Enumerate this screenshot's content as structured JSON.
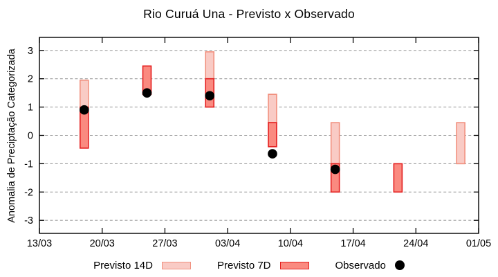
{
  "chart_data": {
    "type": "range-bar+scatter",
    "title": "Rio Curuá Una - Previsto x Observado",
    "ylabel": "Anomalia de Preciptação Categorizada",
    "ylim": [
      -3.46,
      3.46
    ],
    "yticks": [
      -3,
      -2,
      -1,
      0,
      1,
      2,
      3
    ],
    "xticks": [
      "13/03",
      "20/03",
      "27/03",
      "03/04",
      "10/04",
      "17/04",
      "24/04",
      "01/05"
    ],
    "xtick_step_days": 7,
    "x_span_days": 49,
    "grid": {
      "horizontal": true,
      "style": "dashed",
      "color": "#9e9e9e"
    },
    "axis_color": "#000000",
    "legend_position": "bottom-center",
    "series": [
      {
        "name": "Previsto 14D",
        "type": "range-bar",
        "fill": "#f9cbc5",
        "border": "#f1907e",
        "points": [
          {
            "date": "18/03",
            "day": 5,
            "low": 1.0,
            "high": 1.95
          },
          {
            "date": "01/04",
            "day": 19,
            "low": 2.0,
            "high": 2.95
          },
          {
            "date": "08/04",
            "day": 26,
            "low": 0.45,
            "high": 1.45
          },
          {
            "date": "15/04",
            "day": 33,
            "low": -1.0,
            "high": 0.45
          },
          {
            "date": "29/04",
            "day": 47,
            "low": -1.0,
            "high": 0.45
          }
        ]
      },
      {
        "name": "Previsto 7D",
        "type": "range-bar",
        "fill": "#fa8a80",
        "border": "#e41e1e",
        "points": [
          {
            "date": "18/03",
            "day": 5,
            "low": -0.45,
            "high": 1.0
          },
          {
            "date": "25/03",
            "day": 12,
            "low": 1.45,
            "high": 2.45
          },
          {
            "date": "01/04",
            "day": 19,
            "low": 1.0,
            "high": 2.0
          },
          {
            "date": "08/04",
            "day": 26,
            "low": -0.4,
            "high": 0.45
          },
          {
            "date": "15/04",
            "day": 33,
            "low": -2.0,
            "high": -1.0
          },
          {
            "date": "22/04",
            "day": 40,
            "low": -2.0,
            "high": -1.0
          }
        ]
      },
      {
        "name": "Observado",
        "type": "scatter",
        "fill": "#000000",
        "points": [
          {
            "date": "18/03",
            "day": 5,
            "y": 0.9
          },
          {
            "date": "25/03",
            "day": 12,
            "y": 1.5
          },
          {
            "date": "01/04",
            "day": 19,
            "y": 1.4
          },
          {
            "date": "08/04",
            "day": 26,
            "y": -0.65
          },
          {
            "date": "15/04",
            "day": 33,
            "y": -1.2
          }
        ]
      }
    ]
  }
}
